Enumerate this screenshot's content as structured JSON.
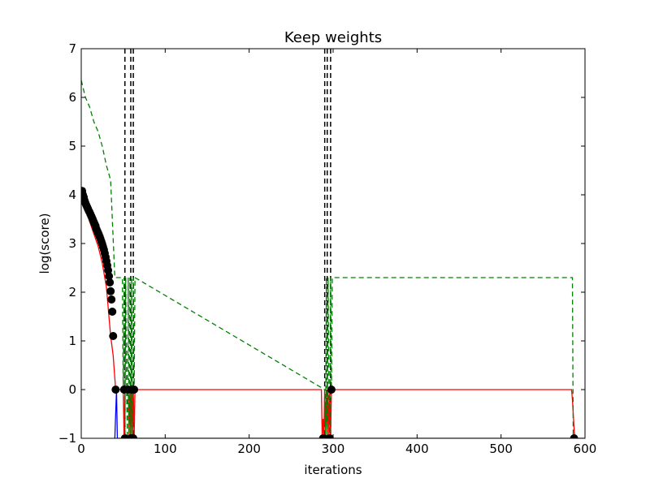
{
  "chart_data": {
    "type": "line",
    "title": "Keep weights",
    "xlabel": "iterations",
    "ylabel": "log(score)",
    "xlim": [
      0,
      600
    ],
    "ylim": [
      -1,
      7
    ],
    "xticks": [
      0,
      100,
      200,
      300,
      400,
      500,
      600
    ],
    "yticks": [
      -1,
      0,
      1,
      2,
      3,
      4,
      5,
      6,
      7
    ],
    "xtick_labels": [
      "0",
      "100",
      "200",
      "300",
      "400",
      "500",
      "600"
    ],
    "ytick_labels": [
      "−1",
      "0",
      "1",
      "2",
      "3",
      "4",
      "5",
      "6",
      "7"
    ],
    "grid": false,
    "legend": "none",
    "series": [
      {
        "color": "#ff0000",
        "style": "solid",
        "marker": "none",
        "x": [
          0,
          5,
          10,
          15,
          20,
          25,
          30,
          35,
          38,
          41,
          50,
          51,
          52,
          56,
          57,
          58,
          59,
          60,
          61,
          62,
          63,
          64,
          100,
          200,
          286,
          287,
          288,
          289,
          290,
          291,
          292,
          293,
          294,
          295,
          296,
          297,
          298,
          300,
          400,
          500,
          584,
          585,
          586,
          587,
          588
        ],
        "y": [
          4.05,
          3.75,
          3.45,
          3.2,
          2.95,
          2.6,
          2.1,
          1.1,
          0.7,
          0.0,
          0.0,
          -1.0,
          0.0,
          0.0,
          -1.0,
          0.0,
          -1.0,
          0.0,
          -1.0,
          0.0,
          -1.0,
          0.0,
          0.0,
          0.0,
          0.0,
          -1.0,
          -0.6,
          -1.0,
          0.0,
          -1.0,
          0.0,
          -1.0,
          0.0,
          -1.0,
          0.0,
          -1.0,
          0.0,
          0.0,
          0.0,
          0.0,
          0.0,
          -0.2,
          -0.5,
          -0.8,
          -1.0
        ]
      },
      {
        "color": "#0000ff",
        "style": "solid",
        "marker": "none",
        "x": [
          40,
          41,
          42,
          43,
          600
        ],
        "y": [
          -1.0,
          -0.5,
          0.0,
          -1.0,
          -1.0
        ]
      },
      {
        "color": "#008000",
        "style": "dashed",
        "marker": "none",
        "x": [
          0,
          5,
          10,
          15,
          20,
          25,
          30,
          35,
          40,
          43,
          46,
          49,
          50,
          51,
          52,
          53,
          54,
          55,
          56,
          57,
          58,
          59,
          60,
          61,
          62,
          63,
          64,
          290,
          291,
          292,
          293,
          294,
          295,
          296,
          297,
          298,
          299,
          300,
          585,
          586
        ],
        "y": [
          6.35,
          6.0,
          5.8,
          5.5,
          5.3,
          5.0,
          4.6,
          4.3,
          2.3,
          2.3,
          2.3,
          2.3,
          0.0,
          2.3,
          -1.0,
          2.3,
          0.0,
          -1.0,
          2.3,
          -1.0,
          2.3,
          -1.0,
          2.3,
          -1.0,
          2.3,
          0.0,
          2.3,
          0.0,
          -1.0,
          2.3,
          -1.0,
          2.3,
          0.0,
          -1.0,
          2.3,
          0.0,
          2.3,
          2.3,
          2.3,
          -1.0
        ]
      },
      {
        "color": "#000000",
        "style": "none",
        "marker": "circle",
        "x": [
          1,
          2,
          3,
          4,
          5,
          6,
          7,
          8,
          9,
          10,
          11,
          12,
          13,
          14,
          15,
          16,
          17,
          18,
          19,
          20,
          21,
          22,
          23,
          24,
          25,
          26,
          27,
          28,
          29,
          30,
          31,
          32,
          33,
          34,
          35,
          36,
          37,
          38,
          41,
          51,
          52,
          56,
          59,
          60,
          62,
          63,
          288,
          289,
          296,
          298,
          587
        ],
        "y": [
          4.08,
          4.0,
          3.95,
          3.88,
          3.83,
          3.79,
          3.75,
          3.71,
          3.67,
          3.64,
          3.6,
          3.56,
          3.52,
          3.48,
          3.44,
          3.4,
          3.36,
          3.3,
          3.26,
          3.22,
          3.18,
          3.14,
          3.09,
          3.04,
          2.99,
          2.93,
          2.87,
          2.8,
          2.72,
          2.64,
          2.55,
          2.45,
          2.33,
          2.2,
          2.02,
          1.85,
          1.6,
          1.1,
          0.0,
          0.0,
          -1.0,
          0.0,
          -1.0,
          0.0,
          -1.0,
          0.0,
          -1.0,
          -1.0,
          -1.0,
          0.0,
          -1.0
        ]
      }
    ],
    "vlines": [
      {
        "x": 52,
        "color": "#000000",
        "style": "dashed"
      },
      {
        "x": 59,
        "color": "#000000",
        "style": "dashed"
      },
      {
        "x": 62,
        "color": "#000000",
        "style": "dashed"
      },
      {
        "x": 290,
        "color": "#000000",
        "style": "dashed"
      },
      {
        "x": 293,
        "color": "#000000",
        "style": "dashed"
      },
      {
        "x": 297,
        "color": "#000000",
        "style": "dashed"
      }
    ]
  }
}
